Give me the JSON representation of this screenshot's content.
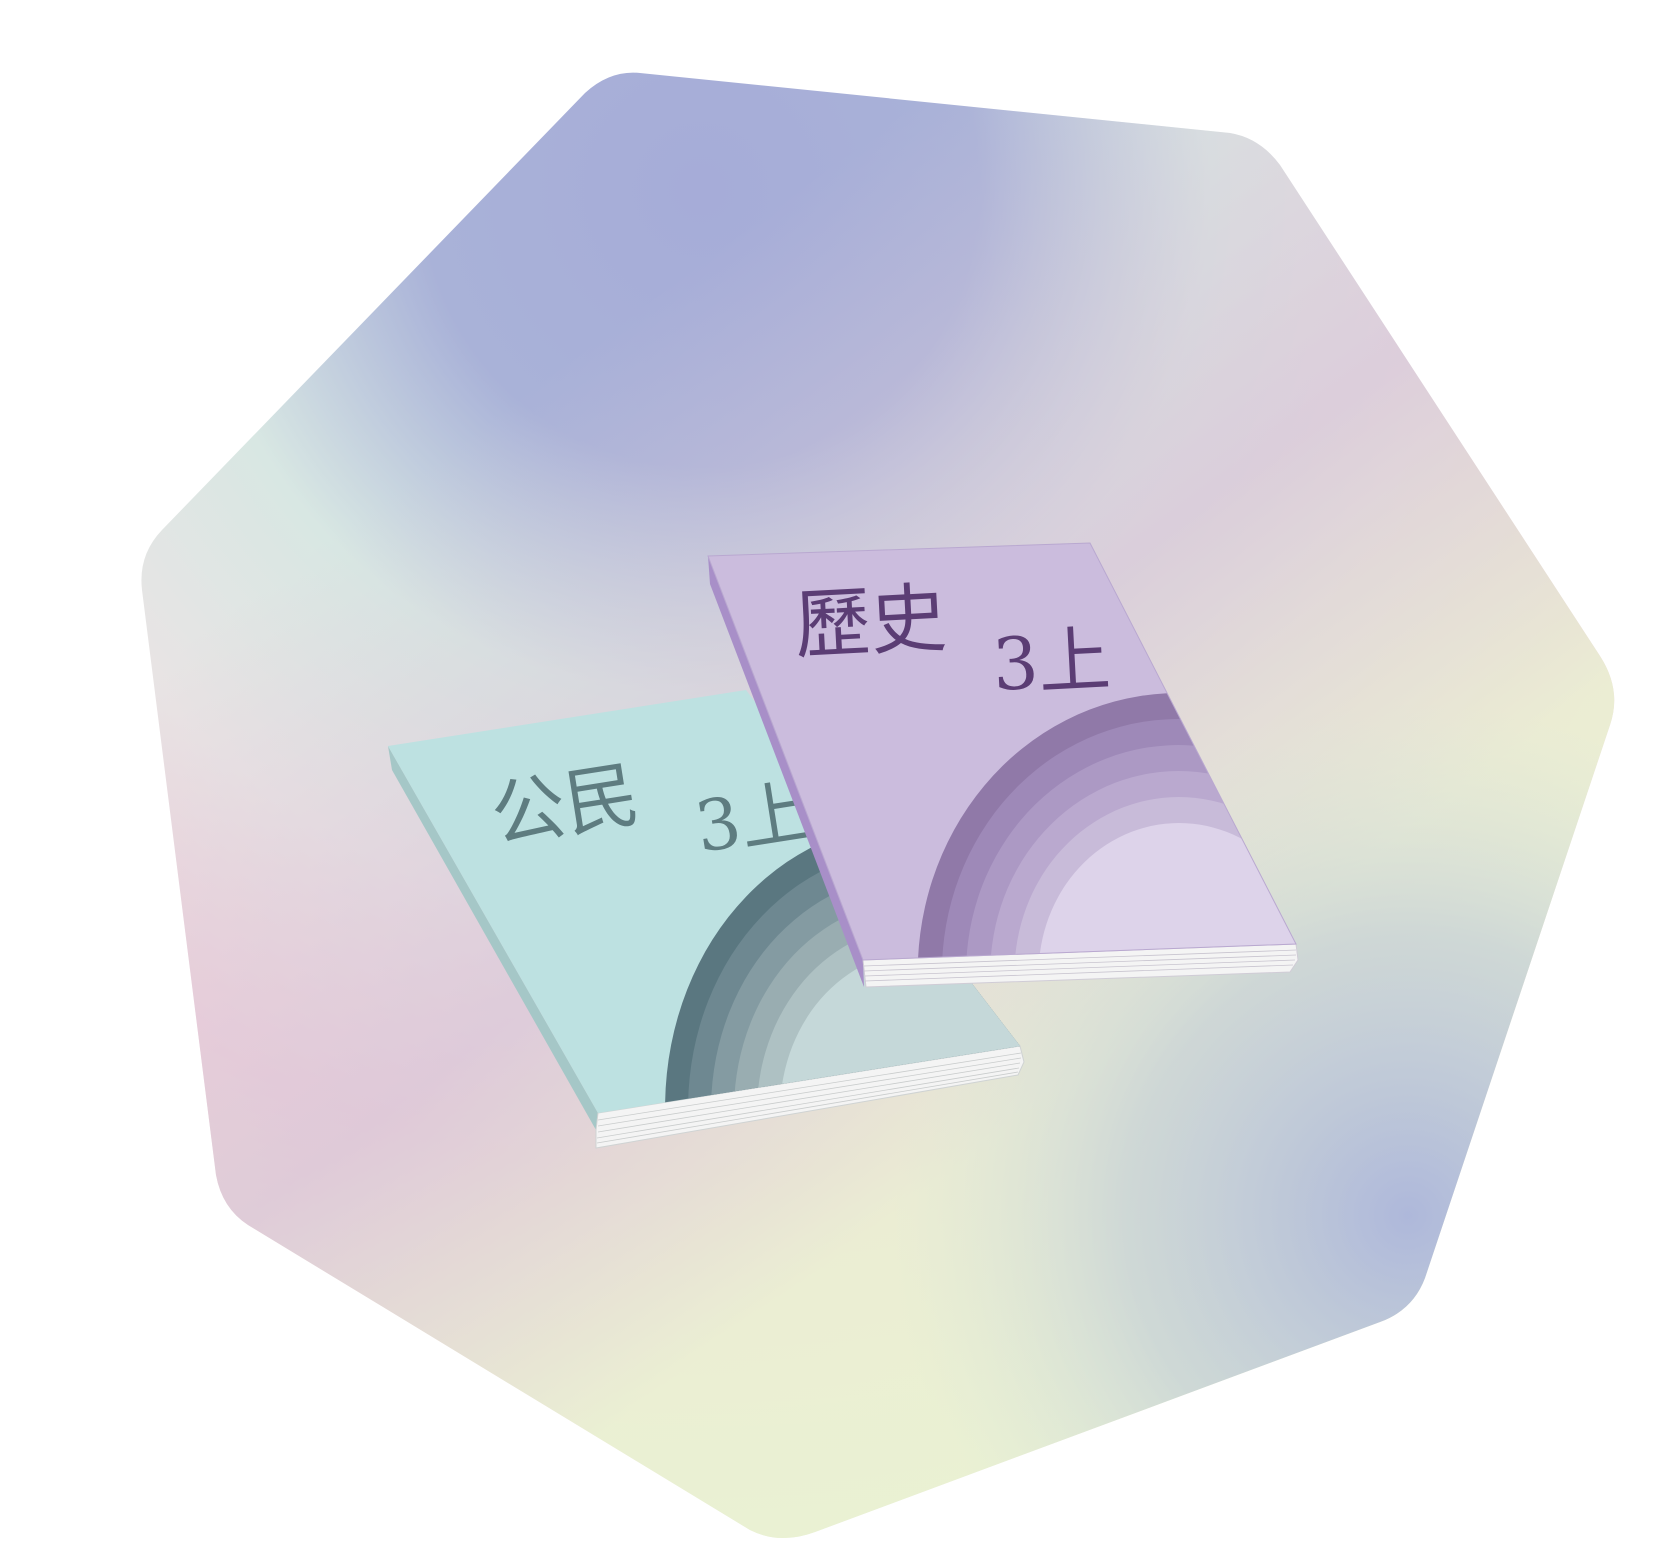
{
  "background_palette": {
    "colors": [
      "#a5add9",
      "#a6acd8",
      "#d9c6d8",
      "#eaf1d2",
      "#d4e3dc",
      "#f1d1da",
      "#e5f5da",
      "#abb5db",
      "#d8e7e3",
      "#e9e4e4"
    ]
  },
  "books": {
    "civics": {
      "subject": "公民",
      "grade": "3上",
      "cover_color": "#bde1e1",
      "spine_color": "#a5c7c7",
      "title_color": "#5e7c80",
      "arc_colors": [
        "#5a7780",
        "#6e8891",
        "#849ba2",
        "#99adb1",
        "#aec1c3",
        "#c5d8d9"
      ]
    },
    "history": {
      "subject": "歷史",
      "grade": "3上",
      "cover_color": "#cbbcdd",
      "spine_color": "#a88fc8",
      "title_color": "#5b3d74",
      "arc_colors": [
        "#9079a8",
        "#9e89b8",
        "#ac99c4",
        "#baa9cf",
        "#c8bbd9",
        "#ddd3ea"
      ]
    }
  }
}
